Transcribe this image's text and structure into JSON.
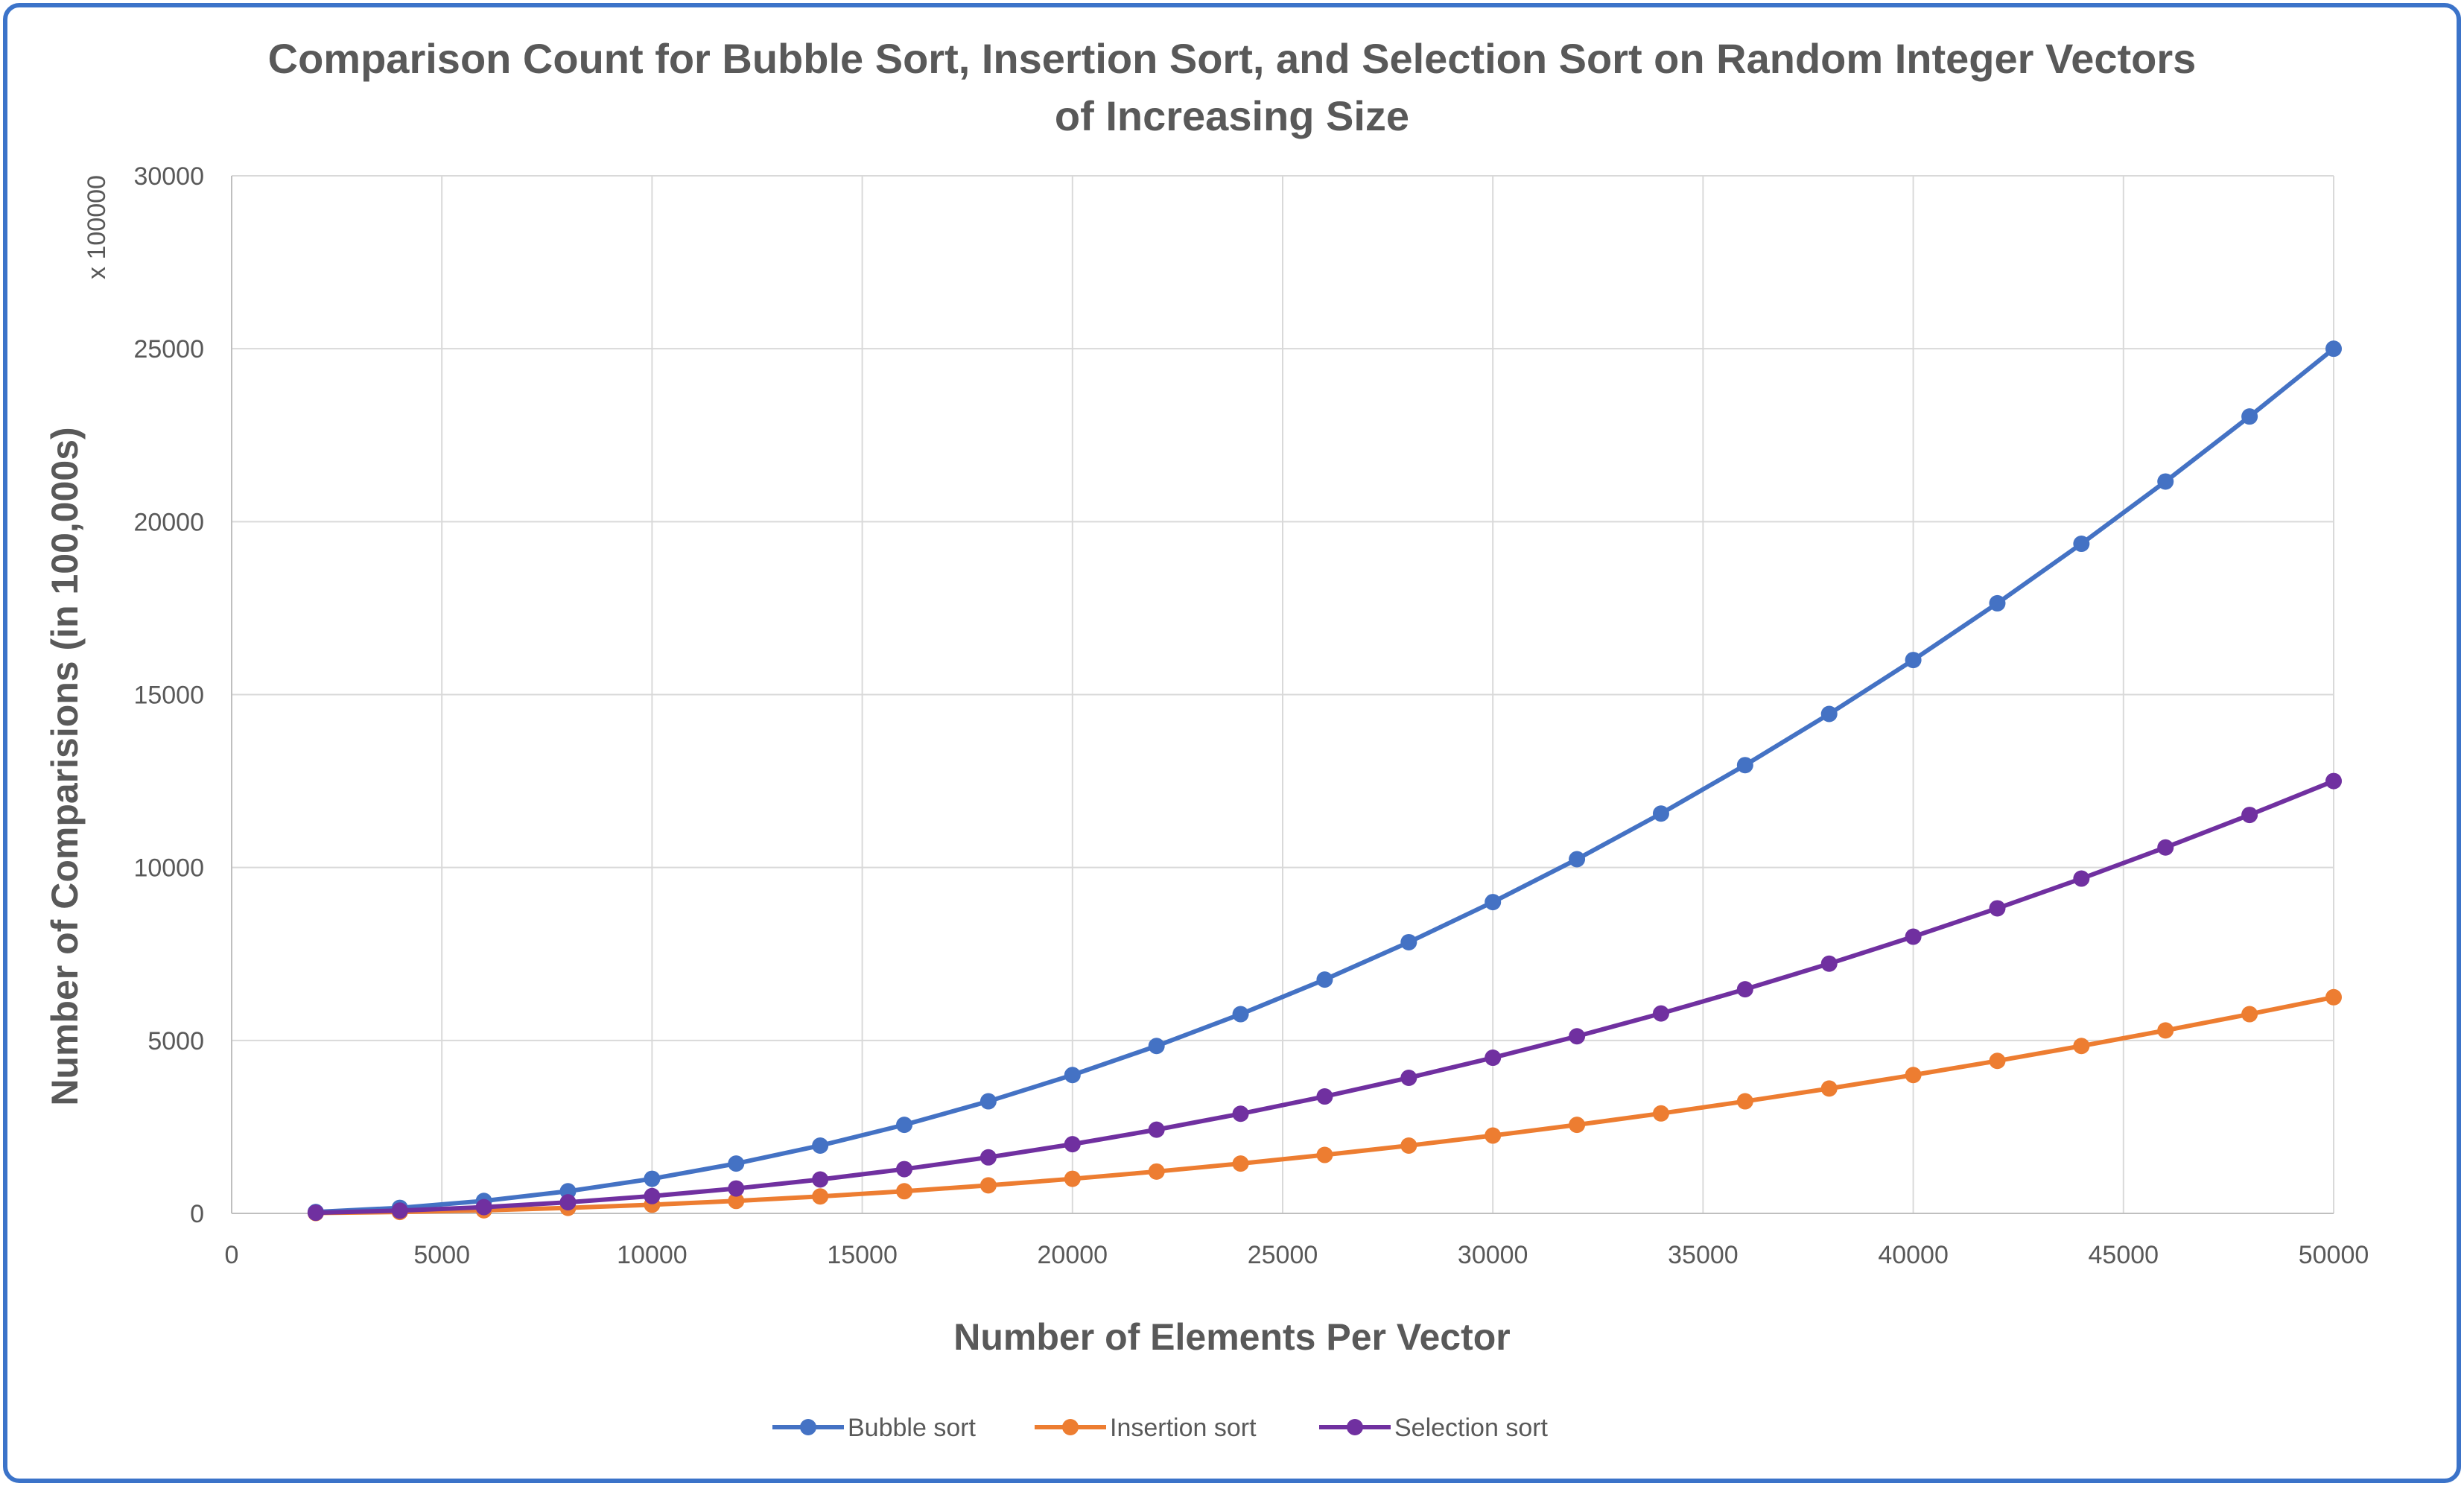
{
  "chart_data": {
    "type": "line",
    "title": "Comparison Count for Bubble Sort, Insertion Sort, and Selection Sort on Random Integer Vectors of Increasing Size",
    "title_lines": [
      "Comparison Count for Bubble Sort, Insertion Sort, and Selection Sort on Random Integer Vectors",
      "of Increasing Size"
    ],
    "xlabel": "Number of Elements Per Vector",
    "ylabel": "Number of Comparisions (in 100,000s)",
    "y_unit_label": "x 100000",
    "xlim": [
      0,
      50000
    ],
    "ylim": [
      0,
      30000
    ],
    "x_ticks": [
      "0",
      "5000",
      "10000",
      "15000",
      "20000",
      "25000",
      "30000",
      "35000",
      "40000",
      "45000",
      "50000"
    ],
    "y_ticks": [
      "0",
      "5000",
      "10000",
      "15000",
      "20000",
      "25000",
      "30000"
    ],
    "grid": true,
    "legend_position": "bottom",
    "x": [
      2000,
      4000,
      6000,
      8000,
      10000,
      12000,
      14000,
      16000,
      18000,
      20000,
      22000,
      24000,
      26000,
      28000,
      30000,
      32000,
      34000,
      36000,
      38000,
      40000,
      42000,
      44000,
      46000,
      48000,
      50000
    ],
    "series": [
      {
        "name": "Bubble sort",
        "color": "#4472c4",
        "values": [
          40,
          160,
          360,
          640,
          1000,
          1440,
          1960,
          2560,
          3240,
          4000,
          4840,
          5760,
          6760,
          7840,
          9000,
          10240,
          11560,
          12960,
          14440,
          16000,
          17640,
          19360,
          21160,
          23040,
          25000
        ]
      },
      {
        "name": "Insertion sort",
        "color": "#ed7d31",
        "values": [
          10,
          40,
          90,
          160,
          250,
          360,
          490,
          640,
          810,
          1000,
          1210,
          1440,
          1690,
          1960,
          2250,
          2560,
          2890,
          3240,
          3610,
          4000,
          4410,
          4840,
          5290,
          5760,
          6250
        ]
      },
      {
        "name": "Selection sort",
        "color": "#7030a0",
        "values": [
          20,
          80,
          180,
          320,
          500,
          720,
          980,
          1280,
          1620,
          2000,
          2420,
          2880,
          3380,
          3920,
          4500,
          5120,
          5780,
          6480,
          7220,
          8000,
          8820,
          9680,
          10580,
          11520,
          12500
        ]
      }
    ]
  }
}
